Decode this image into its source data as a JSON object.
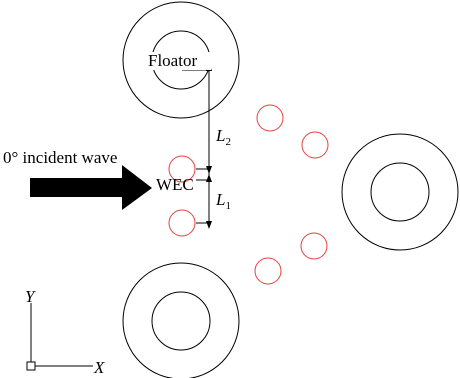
{
  "labels": {
    "floater": "Floator",
    "wec": "WEC",
    "incident_wave": "0° incident wave",
    "l2": "L",
    "l2_sub": "2",
    "l1": "L",
    "l1_sub": "1",
    "axis_y": "Y",
    "axis_x": "X"
  },
  "colors": {
    "floater_stroke": "#000000",
    "wec_stroke": "#e4413f",
    "arrow_fill": "#000000"
  },
  "icons": {
    "incident_arrow": "right-arrow-icon",
    "origin": "square-origin-icon"
  }
}
